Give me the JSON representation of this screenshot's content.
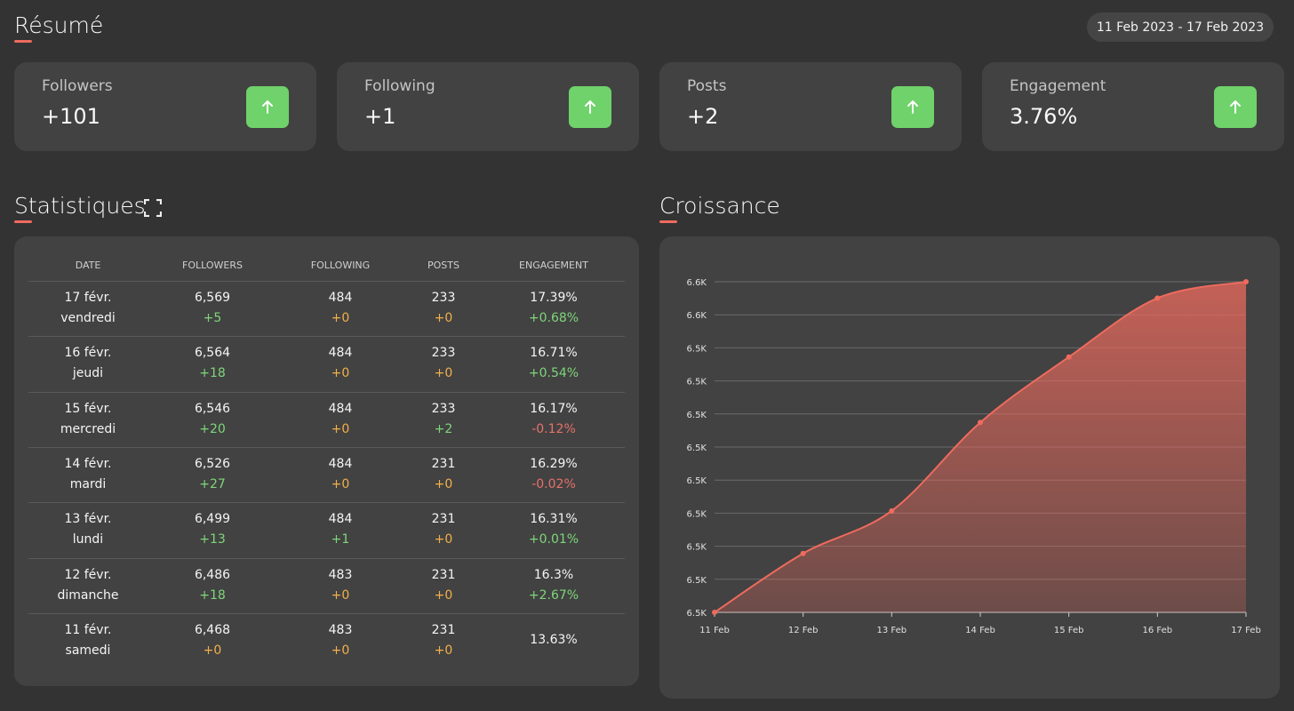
{
  "header": {
    "title": "Résumé",
    "date_range": "11 Feb 2023 - 17 Feb 2023"
  },
  "cards": [
    {
      "label": "Followers",
      "value": "+101"
    },
    {
      "label": "Following",
      "value": "+1"
    },
    {
      "label": "Posts",
      "value": "+2"
    },
    {
      "label": "Engagement",
      "value": "3.76%"
    }
  ],
  "statistics": {
    "title": "Statistiques",
    "table": {
      "columns": [
        "DATE",
        "FOLLOWERS",
        "FOLLOWING",
        "POSTS",
        "ENGAGEMENT"
      ],
      "rows": [
        [
          [
            "17 févr.",
            "vendredi"
          ],
          [
            "6,569",
            "+5"
          ],
          [
            "484",
            "+0"
          ],
          [
            "233",
            "+0"
          ],
          [
            "17.39%",
            "+0.68%"
          ]
        ],
        [
          [
            "16 févr.",
            "jeudi"
          ],
          [
            "6,564",
            "+18"
          ],
          [
            "484",
            "+0"
          ],
          [
            "233",
            "+0"
          ],
          [
            "16.71%",
            "+0.54%"
          ]
        ],
        [
          [
            "15 févr.",
            "mercredi"
          ],
          [
            "6,546",
            "+20"
          ],
          [
            "484",
            "+0"
          ],
          [
            "233",
            "+2"
          ],
          [
            "16.17%",
            "-0.12%"
          ]
        ],
        [
          [
            "14 févr.",
            "mardi"
          ],
          [
            "6,526",
            "+27"
          ],
          [
            "484",
            "+0"
          ],
          [
            "231",
            "+0"
          ],
          [
            "16.29%",
            "-0.02%"
          ]
        ],
        [
          [
            "13 févr.",
            "lundi"
          ],
          [
            "6,499",
            "+13"
          ],
          [
            "484",
            "+1"
          ],
          [
            "231",
            "+0"
          ],
          [
            "16.31%",
            "+0.01%"
          ]
        ],
        [
          [
            "12 févr.",
            "dimanche"
          ],
          [
            "6,486",
            "+18"
          ],
          [
            "483",
            "+0"
          ],
          [
            "231",
            "+0"
          ],
          [
            "16.3%",
            "+2.67%"
          ]
        ],
        [
          [
            "11 févr.",
            "samedi"
          ],
          [
            "6,468",
            "+0"
          ],
          [
            "483",
            "+0"
          ],
          [
            "231",
            "+0"
          ],
          [
            "13.63%"
          ]
        ]
      ]
    }
  },
  "chart_data": {
    "type": "line",
    "title": "Croissance",
    "categories": [
      "11 Feb",
      "12 Feb",
      "13 Feb",
      "14 Feb",
      "15 Feb",
      "16 Feb",
      "17 Feb"
    ],
    "values": [
      6468,
      6486,
      6499,
      6526,
      6546,
      6564,
      6569
    ],
    "color": "#ef6b5e",
    "ylim": [
      6468,
      6569
    ],
    "yticks": [
      {
        "value": 6468,
        "label": "6.5K"
      },
      {
        "value": 6478.1,
        "label": "6.5K"
      },
      {
        "value": 6488.2,
        "label": "6.5K"
      },
      {
        "value": 6498.3,
        "label": "6.5K"
      },
      {
        "value": 6508.4,
        "label": "6.5K"
      },
      {
        "value": 6518.5,
        "label": "6.5K"
      },
      {
        "value": 6528.6,
        "label": "6.5K"
      },
      {
        "value": 6538.7,
        "label": "6.5K"
      },
      {
        "value": 6548.8,
        "label": "6.5K"
      },
      {
        "value": 6558.9,
        "label": "6.6K"
      },
      {
        "value": 6569,
        "label": "6.6K"
      }
    ],
    "grid": true
  }
}
